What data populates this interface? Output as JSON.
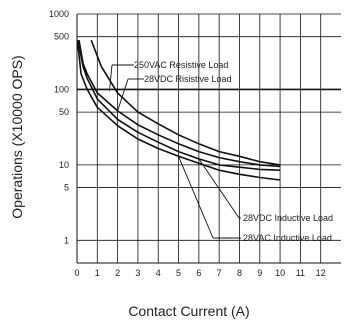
{
  "chart_data": {
    "type": "line",
    "title": "",
    "xlabel": "Contact Current (A)",
    "ylabel": "Operations (X10000 OPS)",
    "xscale": "linear",
    "yscale": "log",
    "xlim": [
      0,
      13
    ],
    "ylim": [
      0.5,
      1000
    ],
    "x_ticks": [
      0,
      1,
      2,
      3,
      4,
      5,
      6,
      7,
      8,
      9,
      10,
      11,
      12
    ],
    "y_ticks": [
      1,
      5,
      10,
      50,
      100,
      500,
      1000
    ],
    "grid": true,
    "series": [
      {
        "name": "250VAC Resistive Load",
        "x": [
          0.7,
          1.2,
          2.0,
          3.0,
          4.0,
          5.0,
          6.0,
          7.0,
          8.0,
          9.0,
          10.0
        ],
        "y": [
          450,
          200,
          90,
          50,
          35,
          25,
          19,
          15,
          13,
          11,
          10
        ]
      },
      {
        "name": "28VDC Risistive Load",
        "x": [
          0.1,
          0.3,
          0.5,
          1.0,
          2.0,
          3.0,
          4.0,
          5.0,
          6.0,
          7.0,
          8.0,
          9.0,
          10.0
        ],
        "y": [
          450,
          220,
          160,
          90,
          52,
          34,
          25,
          19,
          15,
          12.5,
          11,
          10,
          9.5
        ]
      },
      {
        "name": "28VDC Inductive Load",
        "x": [
          0.05,
          0.3,
          0.5,
          1.0,
          2.0,
          3.0,
          4.0,
          5.0,
          6.0,
          7.0,
          8.0,
          9.0,
          10.0
        ],
        "y": [
          450,
          200,
          140,
          75,
          40,
          27,
          20,
          15,
          12,
          10,
          9.3,
          8.7,
          8.5
        ]
      },
      {
        "name": "28VAC Inductive Load",
        "x": [
          0.02,
          0.2,
          0.5,
          1.0,
          2.0,
          3.0,
          4.0,
          5.0,
          6.0,
          7.0,
          8.0,
          9.0,
          10.0
        ],
        "y": [
          450,
          160,
          100,
          58,
          33,
          22,
          16.5,
          13,
          10.5,
          8.5,
          7.5,
          6.8,
          6.3
        ]
      }
    ],
    "annotations": [
      {
        "text": "250VAC Resistive Load",
        "series": "250VAC Resistive Load"
      },
      {
        "text": "28VDC Risistive Load",
        "series": "28VDC Risistive Load"
      },
      {
        "text": "28VDC Inductive Load",
        "series": "28VDC Inductive Load"
      },
      {
        "text": "28VAC Inductive Load",
        "series": "28VAC Inductive Load"
      }
    ],
    "colors": {
      "line": "#111111",
      "grid": "#111111",
      "text": "#222222"
    }
  }
}
